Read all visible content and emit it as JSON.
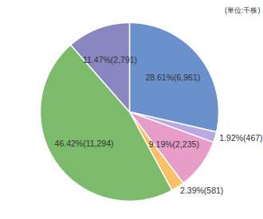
{
  "chart_data": {
    "type": "pie",
    "subtitle": "(単位:千株)",
    "values": [
      28.61,
      1.92,
      9.19,
      2.39,
      46.42,
      11.47
    ],
    "value_labels": [
      "28.61%(6,961)",
      "1.92%(467)",
      "9.19%(2,235)",
      "2.39%(581)",
      "46.42%(11,294)",
      "11.47%(2,791)"
    ],
    "colors": [
      "#6a91cc",
      "#b7a9e2",
      "#e89cc8",
      "#f9c066",
      "#7dbb6c",
      "#8986c1"
    ],
    "data_labels": true
  }
}
